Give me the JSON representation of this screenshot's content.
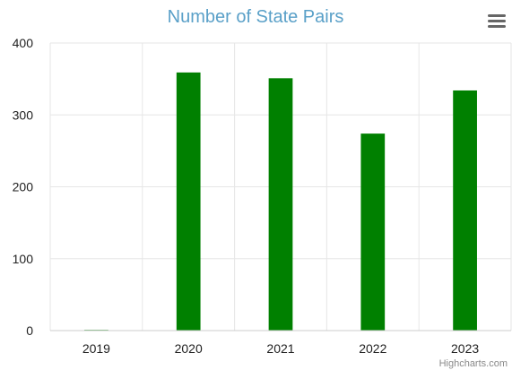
{
  "chart_data": {
    "type": "bar",
    "title": "Number of State Pairs",
    "categories": [
      "2019",
      "2020",
      "2021",
      "2022",
      "2023"
    ],
    "values": [
      1,
      359,
      351,
      274,
      334
    ],
    "ylim": [
      0,
      400
    ],
    "yticks": [
      "0",
      "100",
      "200",
      "300",
      "400"
    ],
    "grid": true,
    "bar_color": "#008000",
    "title_color": "#5aa0c8"
  },
  "menu": {
    "icon": "hamburger-menu-icon"
  },
  "credits": {
    "text": "Highcharts.com"
  }
}
